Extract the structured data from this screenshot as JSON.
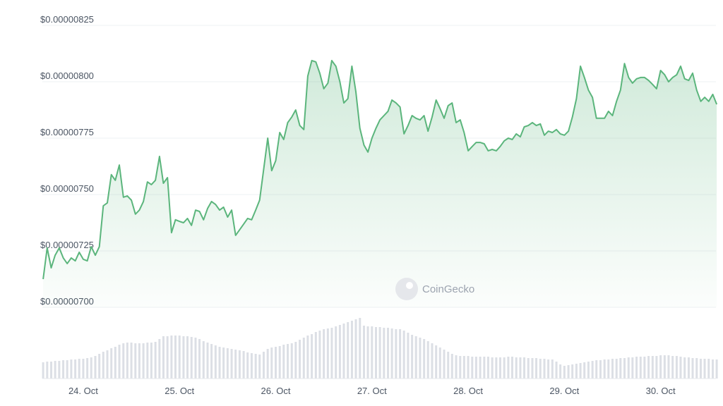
{
  "chart_data": {
    "type": "line",
    "watermark": "CoinGecko",
    "color": "#5bb57c",
    "ylim": [
      7e-06,
      8.25e-06
    ],
    "yticks": [
      {
        "value": 7e-06,
        "label": "$0.00000700"
      },
      {
        "value": 7.25e-06,
        "label": "$0.00000725"
      },
      {
        "value": 7.5e-06,
        "label": "$0.00000750"
      },
      {
        "value": 7.75e-06,
        "label": "$0.00000775"
      },
      {
        "value": 8e-06,
        "label": "$0.00000800"
      },
      {
        "value": 8.25e-06,
        "label": "$0.00000825"
      }
    ],
    "grid": true,
    "xlim": [
      23.575,
      30.575
    ],
    "xticks": [
      {
        "value": 24,
        "label": "24. Oct"
      },
      {
        "value": 25,
        "label": "25. Oct"
      },
      {
        "value": 26,
        "label": "26. Oct"
      },
      {
        "value": 27,
        "label": "27. Oct"
      },
      {
        "value": 28,
        "label": "28. Oct"
      },
      {
        "value": 29,
        "label": "29. Oct"
      },
      {
        "value": 30,
        "label": "30. Oct"
      }
    ],
    "x": [
      23.583,
      23.625,
      23.667,
      23.708,
      23.75,
      23.792,
      23.833,
      23.875,
      23.917,
      23.958,
      24,
      24.042,
      24.083,
      24.125,
      24.167,
      24.208,
      24.25,
      24.292,
      24.333,
      24.375,
      24.417,
      24.458,
      24.5,
      24.542,
      24.583,
      24.625,
      24.667,
      24.708,
      24.75,
      24.792,
      24.833,
      24.875,
      24.917,
      24.958,
      25,
      25.042,
      25.083,
      25.125,
      25.167,
      25.208,
      25.25,
      25.292,
      25.333,
      25.375,
      25.417,
      25.458,
      25.5,
      25.542,
      25.583,
      25.625,
      25.667,
      25.708,
      25.75,
      25.792,
      25.833,
      25.875,
      25.917,
      25.958,
      26,
      26.042,
      26.083,
      26.125,
      26.167,
      26.208,
      26.25,
      26.292,
      26.333,
      26.375,
      26.417,
      26.458,
      26.5,
      26.542,
      26.583,
      26.625,
      26.667,
      26.708,
      26.75,
      26.792,
      26.833,
      26.875,
      26.917,
      26.958,
      27,
      27.042,
      27.083,
      27.125,
      27.167,
      27.208,
      27.25,
      27.292,
      27.333,
      27.375,
      27.417,
      27.458,
      27.5,
      27.542,
      27.583,
      27.625,
      27.667,
      27.708,
      27.75,
      27.792,
      27.833,
      27.875,
      27.917,
      27.958,
      28,
      28.042,
      28.083,
      28.125,
      28.167,
      28.208,
      28.25,
      28.292,
      28.333,
      28.375,
      28.417,
      28.458,
      28.5,
      28.542,
      28.583,
      28.625,
      28.667,
      28.708,
      28.75,
      28.792,
      28.833,
      28.875,
      28.917,
      28.958,
      29,
      29.042,
      29.083,
      29.125,
      29.167,
      29.208,
      29.25,
      29.292,
      29.333,
      29.375,
      29.417,
      29.458,
      29.5,
      29.542,
      29.583,
      29.625,
      29.667,
      29.708,
      29.75,
      29.792,
      29.833,
      29.875,
      29.917,
      29.958,
      30,
      30.042,
      30.083,
      30.125,
      30.167,
      30.208,
      30.25,
      30.292,
      30.333,
      30.375,
      30.417,
      30.458,
      30.5,
      30.542,
      30.583
    ],
    "values": [
      7.125e-06,
      7.263e-06,
      7.175e-06,
      7.231e-06,
      7.263e-06,
      7.219e-06,
      7.194e-06,
      7.219e-06,
      7.206e-06,
      7.244e-06,
      7.213e-06,
      7.206e-06,
      7.269e-06,
      7.231e-06,
      7.269e-06,
      7.45e-06,
      7.463e-06,
      7.588e-06,
      7.563e-06,
      7.631e-06,
      7.488e-06,
      7.494e-06,
      7.475e-06,
      7.413e-06,
      7.431e-06,
      7.469e-06,
      7.556e-06,
      7.544e-06,
      7.563e-06,
      7.669e-06,
      7.55e-06,
      7.575e-06,
      7.331e-06,
      7.388e-06,
      7.381e-06,
      7.375e-06,
      7.394e-06,
      7.363e-06,
      7.431e-06,
      7.425e-06,
      7.388e-06,
      7.438e-06,
      7.469e-06,
      7.456e-06,
      7.431e-06,
      7.444e-06,
      7.4e-06,
      7.431e-06,
      7.319e-06,
      7.344e-06,
      7.369e-06,
      7.394e-06,
      7.388e-06,
      7.431e-06,
      7.475e-06,
      7.613e-06,
      7.75e-06,
      7.606e-06,
      7.65e-06,
      7.775e-06,
      7.744e-06,
      7.819e-06,
      7.844e-06,
      7.875e-06,
      7.806e-06,
      7.788e-06,
      8.025e-06,
      8.094e-06,
      8.088e-06,
      8.038e-06,
      7.969e-06,
      7.994e-06,
      8.094e-06,
      8.069e-06,
      8e-06,
      7.906e-06,
      7.925e-06,
      8.069e-06,
      7.956e-06,
      7.794e-06,
      7.719e-06,
      7.688e-06,
      7.75e-06,
      7.794e-06,
      7.831e-06,
      7.85e-06,
      7.869e-06,
      7.919e-06,
      7.906e-06,
      7.888e-06,
      7.769e-06,
      7.806e-06,
      7.85e-06,
      7.838e-06,
      7.831e-06,
      7.85e-06,
      7.781e-06,
      7.844e-06,
      7.919e-06,
      7.881e-06,
      7.838e-06,
      7.894e-06,
      7.906e-06,
      7.819e-06,
      7.831e-06,
      7.775e-06,
      7.694e-06,
      7.713e-06,
      7.731e-06,
      7.731e-06,
      7.725e-06,
      7.694e-06,
      7.7e-06,
      7.694e-06,
      7.713e-06,
      7.738e-06,
      7.75e-06,
      7.744e-06,
      7.769e-06,
      7.756e-06,
      7.8e-06,
      7.806e-06,
      7.819e-06,
      7.806e-06,
      7.813e-06,
      7.763e-06,
      7.781e-06,
      7.775e-06,
      7.788e-06,
      7.769e-06,
      7.763e-06,
      7.781e-06,
      7.844e-06,
      7.925e-06,
      8.069e-06,
      8.019e-06,
      7.963e-06,
      7.931e-06,
      7.838e-06,
      7.838e-06,
      7.838e-06,
      7.869e-06,
      7.85e-06,
      7.913e-06,
      7.963e-06,
      8.081e-06,
      8.019e-06,
      7.994e-06,
      8.013e-06,
      8.019e-06,
      8.019e-06,
      8.006e-06,
      7.988e-06,
      7.969e-06,
      8.05e-06,
      8.031e-06,
      8e-06,
      8.019e-06,
      8.031e-06,
      8.069e-06,
      8.013e-06,
      8.006e-06,
      8.038e-06,
      7.963e-06,
      7.913e-06,
      7.931e-06,
      7.913e-06,
      7.944e-06,
      7.9e-06
    ],
    "volume": {
      "color": "#dcdfe5",
      "ylim": [
        0,
        100
      ],
      "values": [
        23,
        24,
        24,
        25,
        25,
        26,
        26,
        27,
        27,
        28,
        28,
        29,
        30,
        32,
        35,
        38,
        40,
        43,
        45,
        48,
        50,
        51,
        51,
        50,
        50,
        50,
        51,
        51,
        52,
        56,
        60,
        60,
        61,
        61,
        61,
        60,
        60,
        59,
        58,
        56,
        53,
        51,
        49,
        47,
        45,
        44,
        43,
        42,
        41,
        40,
        39,
        37,
        36,
        35,
        34,
        38,
        42,
        44,
        45,
        46,
        48,
        49,
        50,
        52,
        55,
        58,
        61,
        63,
        66,
        68,
        70,
        71,
        72,
        74,
        76,
        78,
        80,
        82,
        84,
        86,
        75,
        74,
        74,
        73,
        73,
        72,
        72,
        71,
        70,
        70,
        68,
        65,
        62,
        60,
        58,
        56,
        53,
        50,
        47,
        44,
        41,
        38,
        35,
        33,
        32,
        32,
        32,
        31,
        31,
        31,
        31,
        31,
        30,
        30,
        30,
        30,
        31,
        31,
        30,
        30,
        30,
        29,
        29,
        29,
        28,
        28,
        27,
        27,
        24,
        20,
        18,
        19,
        20,
        21,
        22,
        23,
        24,
        25,
        26,
        26,
        27,
        27,
        28,
        28,
        29,
        29,
        30,
        30,
        31,
        31,
        31,
        32,
        32,
        32,
        33,
        33,
        33,
        32,
        32,
        31,
        30,
        30,
        29,
        29,
        28,
        28,
        28,
        27,
        27
      ]
    }
  }
}
